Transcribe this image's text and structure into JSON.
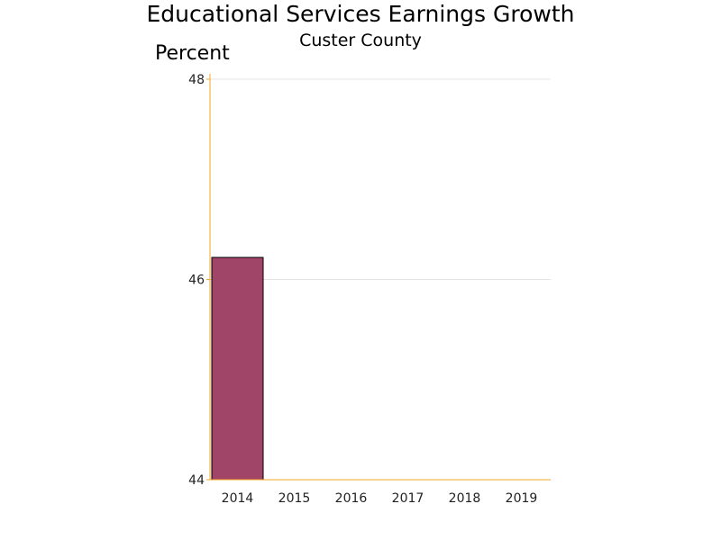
{
  "chart_data": {
    "type": "bar",
    "title": "Educational Services Earnings Growth",
    "subtitle": "Custer County",
    "ylabel": "Percent",
    "xlabel": "",
    "categories": [
      "2014",
      "2015",
      "2016",
      "2017",
      "2018",
      "2019"
    ],
    "values": [
      46.22,
      null,
      null,
      null,
      null,
      null
    ],
    "ylim": [
      44,
      48
    ],
    "yticks": [
      44,
      46,
      48
    ],
    "grid": true,
    "legend": "none",
    "colors": {
      "bar": "#a04468",
      "bar_outline": "#000000",
      "axis": "#f5a623",
      "grid": "#e4e4e4"
    }
  }
}
